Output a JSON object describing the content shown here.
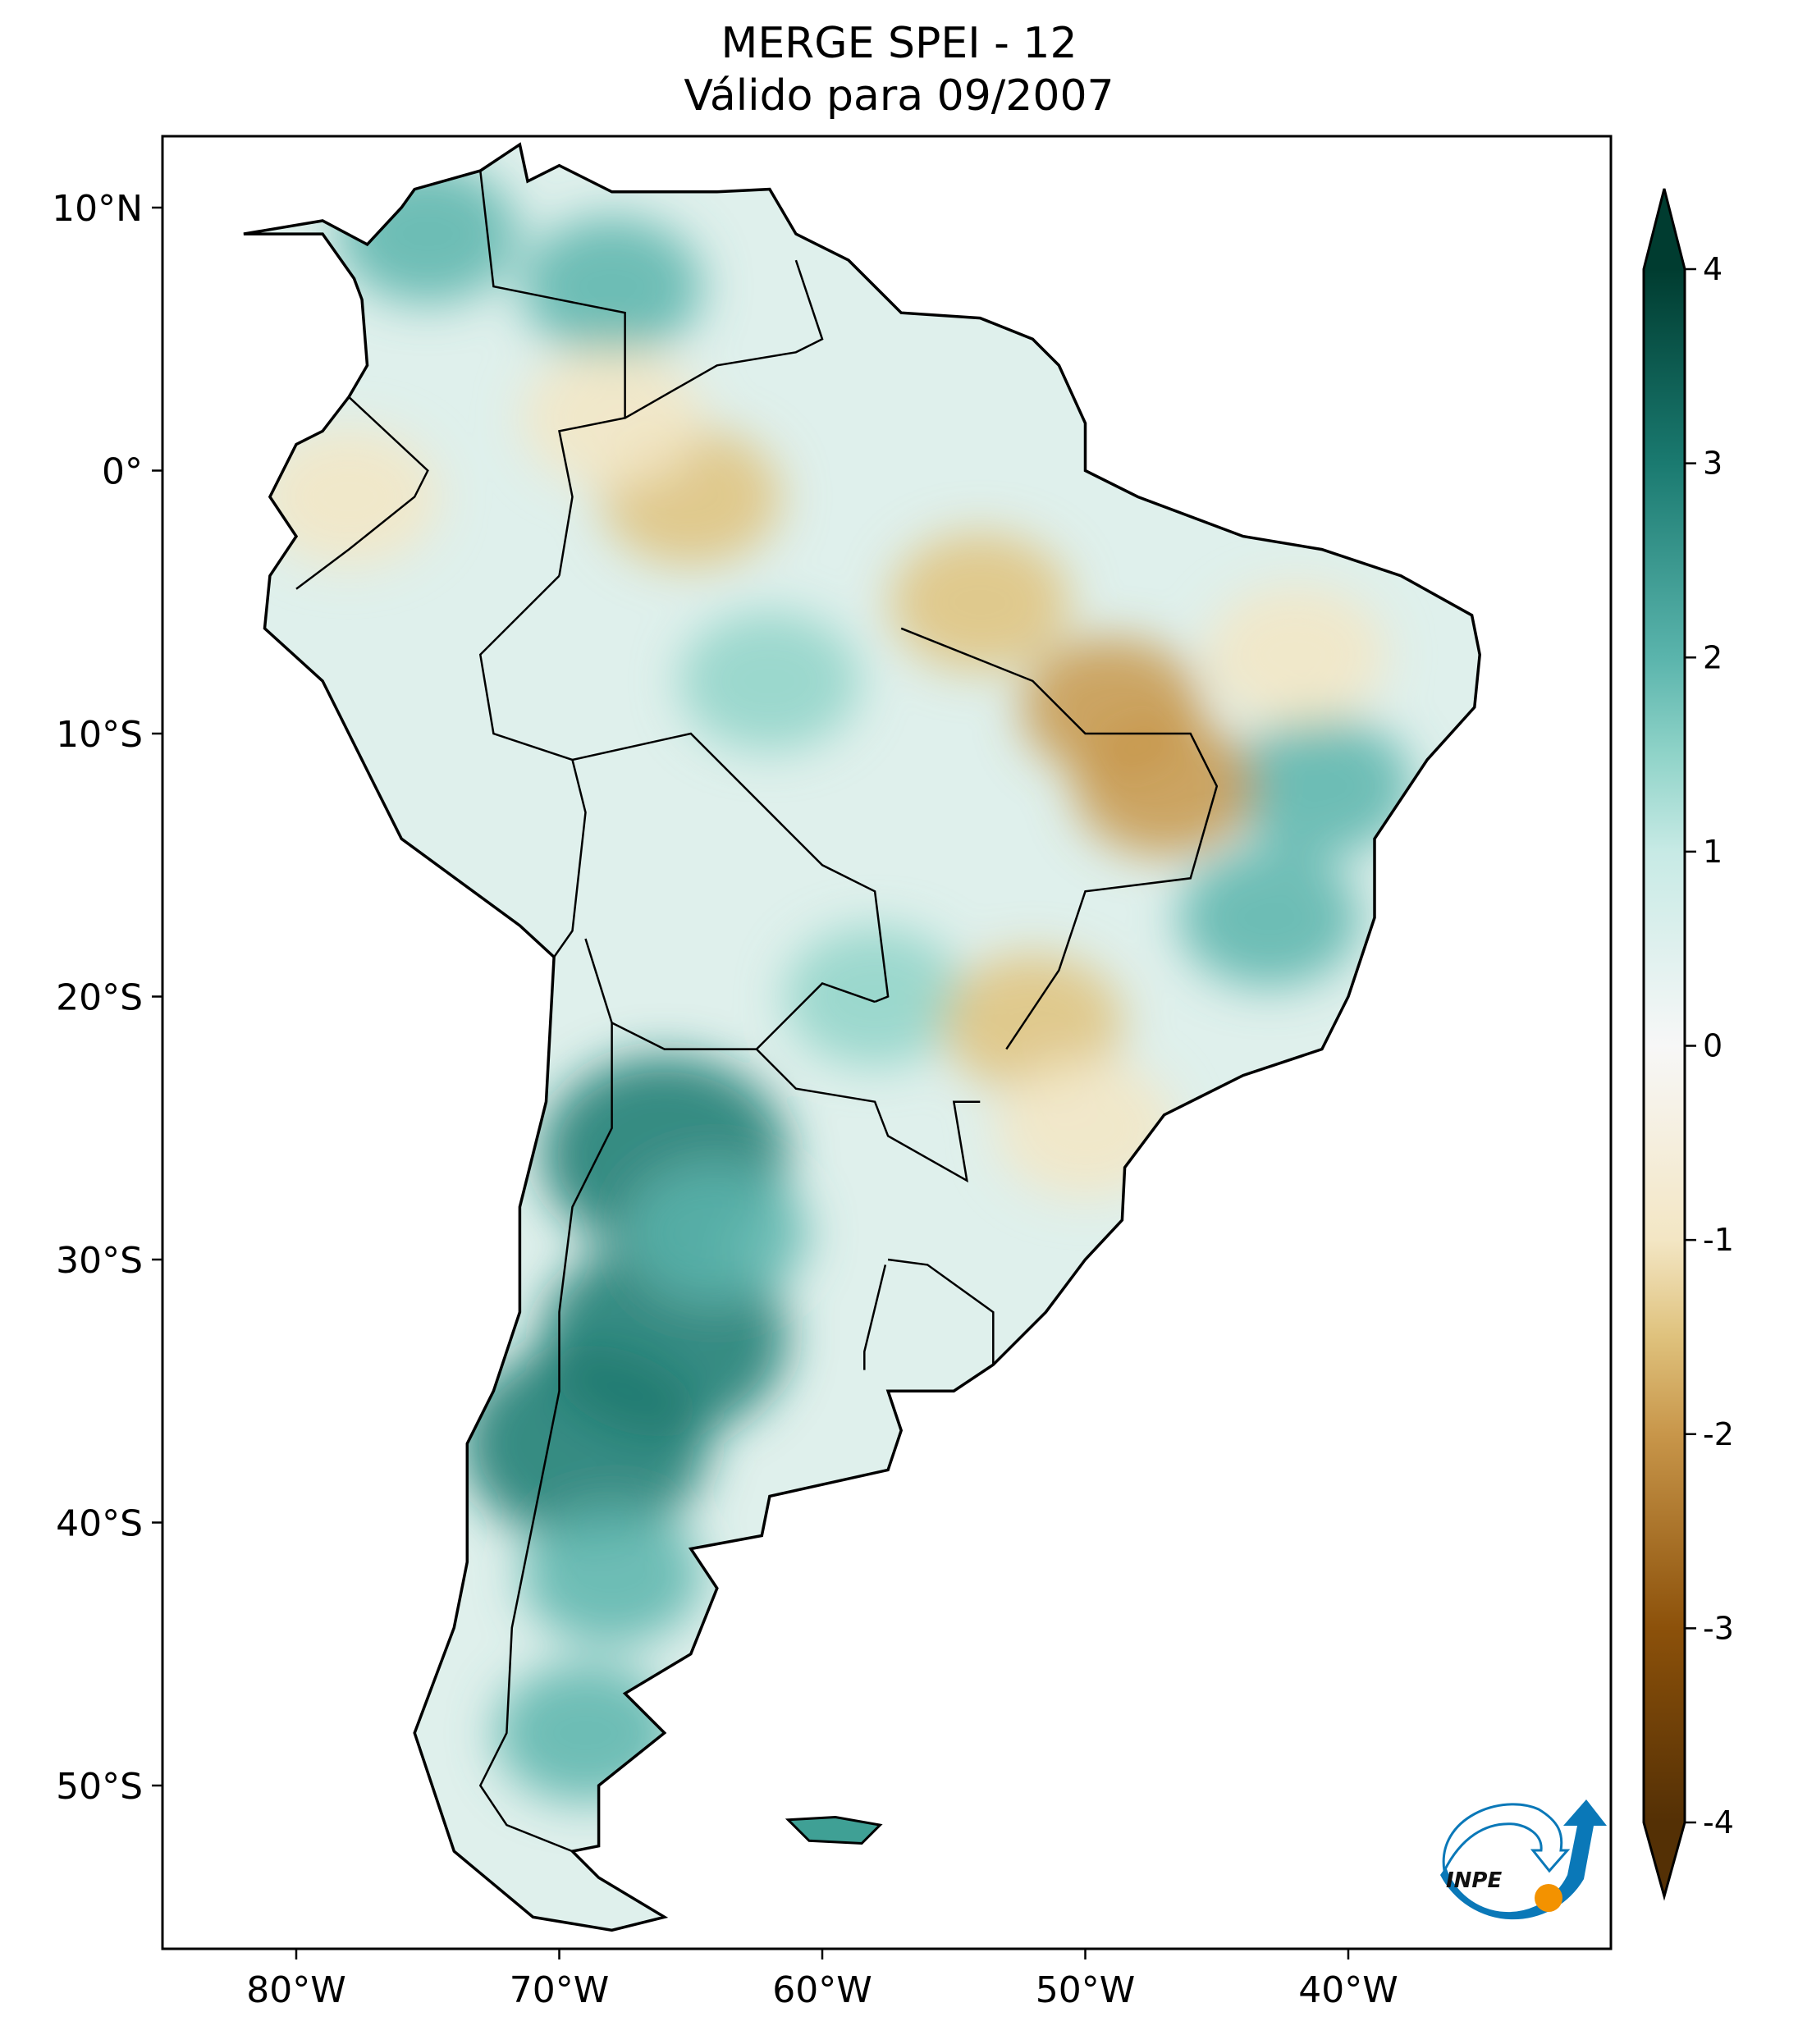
{
  "chart_data": {
    "type": "heatmap",
    "title_line1": "MERGE   SPEI - 12",
    "title_line2": "Válido para 09/2007",
    "projection": "plate-carree",
    "lon_range": [
      -85,
      -30
    ],
    "lat_range": [
      -56,
      12.7
    ],
    "x_ticks": [
      {
        "value": -80,
        "label": "80°W"
      },
      {
        "value": -70,
        "label": "70°W"
      },
      {
        "value": -60,
        "label": "60°W"
      },
      {
        "value": -50,
        "label": "50°W"
      },
      {
        "value": -40,
        "label": "40°W"
      }
    ],
    "y_ticks": [
      {
        "value": 10,
        "label": "10°N"
      },
      {
        "value": 0,
        "label": "0°"
      },
      {
        "value": -10,
        "label": "10°S"
      },
      {
        "value": -20,
        "label": "20°S"
      },
      {
        "value": -30,
        "label": "30°S"
      },
      {
        "value": -40,
        "label": "40°S"
      },
      {
        "value": -50,
        "label": "50°S"
      }
    ],
    "colorbar": {
      "colormap": "BrBG",
      "range": [
        -4,
        4
      ],
      "extend": "both",
      "ticks": [
        {
          "value": 4,
          "label": "4"
        },
        {
          "value": 3,
          "label": "3"
        },
        {
          "value": 2,
          "label": "2"
        },
        {
          "value": 1,
          "label": "1"
        },
        {
          "value": 0,
          "label": "0"
        },
        {
          "value": -1,
          "label": "-1"
        },
        {
          "value": -2,
          "label": "-2"
        },
        {
          "value": -3,
          "label": "-3"
        },
        {
          "value": -4,
          "label": "-4"
        }
      ],
      "stops": [
        {
          "value": -4,
          "color": "#543005"
        },
        {
          "value": -3,
          "color": "#8c510a"
        },
        {
          "value": -2,
          "color": "#c8964a"
        },
        {
          "value": -1.5,
          "color": "#dfc27d"
        },
        {
          "value": -1,
          "color": "#f3e6c4"
        },
        {
          "value": 0,
          "color": "#f7f7f7"
        },
        {
          "value": 1,
          "color": "#c7eae5"
        },
        {
          "value": 1.5,
          "color": "#8fd3c8"
        },
        {
          "value": 2,
          "color": "#5ab4ac"
        },
        {
          "value": 3,
          "color": "#1a7a70"
        },
        {
          "value": 4,
          "color": "#003c30"
        }
      ]
    },
    "field_features": [
      {
        "lon": -66,
        "lat": -26,
        "value": 3.0
      },
      {
        "lon": -66,
        "lat": -33,
        "value": 3.0
      },
      {
        "lon": -69,
        "lat": -37,
        "value": 3.3
      },
      {
        "lon": -68,
        "lat": -42,
        "value": 2.5
      },
      {
        "lon": -69,
        "lat": -48,
        "value": 2.0
      },
      {
        "lon": -64,
        "lat": -29,
        "value": 2.2
      },
      {
        "lon": -43,
        "lat": -17,
        "value": 2.0
      },
      {
        "lon": -41,
        "lat": -12,
        "value": 1.8
      },
      {
        "lon": -68,
        "lat": 7,
        "value": 1.8
      },
      {
        "lon": -75,
        "lat": 9,
        "value": 1.8
      },
      {
        "lon": -62,
        "lat": -8,
        "value": 1.6
      },
      {
        "lon": -58,
        "lat": -20,
        "value": 1.6
      },
      {
        "lon": -49,
        "lat": -9,
        "value": -2.0
      },
      {
        "lon": -47,
        "lat": -12,
        "value": -2.2
      },
      {
        "lon": -54,
        "lat": -5,
        "value": -1.3
      },
      {
        "lon": -65,
        "lat": -1,
        "value": -1.3
      },
      {
        "lon": -68,
        "lat": 2,
        "value": -1.2
      },
      {
        "lon": -78,
        "lat": -1,
        "value": -1.2
      },
      {
        "lon": -52,
        "lat": -21,
        "value": -1.3
      },
      {
        "lon": -50,
        "lat": -25,
        "value": -1.2
      },
      {
        "lon": -42,
        "lat": -7,
        "value": -1.0
      }
    ]
  },
  "logo": {
    "text": "INPE",
    "blue": "#0a78b8",
    "orange": "#f39200"
  }
}
